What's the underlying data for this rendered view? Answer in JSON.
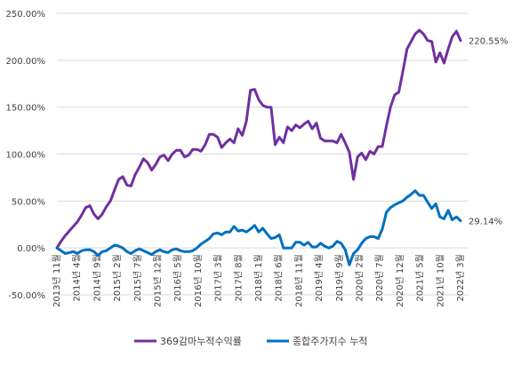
{
  "chart_data": {
    "type": "line",
    "title": "",
    "xlabel": "",
    "ylabel": "",
    "ylim": [
      -50,
      250
    ],
    "yticks": [
      -50,
      0,
      50,
      100,
      150,
      200,
      250
    ],
    "y_tick_labels": [
      "-50.00%",
      "0.00%",
      "50.00%",
      "100.00%",
      "150.00%",
      "200.00%",
      "250.00%"
    ],
    "x_tick_labels": [
      "2013년 11월",
      "2014년 4월",
      "2014년 9월",
      "2015년 2월",
      "2015년 7월",
      "2015년 12월",
      "2016년 5월",
      "2016년 10월",
      "2017년 3월",
      "2017년 8월",
      "2018년 1월",
      "2018년 6월",
      "2018년 11월",
      "2019년 4월",
      "2019년 9월",
      "2020년 2월",
      "2020년 7월",
      "2020년 12월",
      "2021년 5월",
      "2021년 10월",
      "2022년 3월"
    ],
    "grid": "horizontal",
    "legend_position": "bottom",
    "series": [
      {
        "name": "369감마누적수익률",
        "color": "#7030a0",
        "end_label": "220.55%",
        "values": [
          0,
          7,
          13,
          18,
          23,
          28,
          35,
          43,
          45,
          36,
          31,
          36,
          44,
          50,
          62,
          73,
          76,
          67,
          66,
          78,
          86,
          95,
          91,
          83,
          89,
          97,
          99,
          93,
          100,
          104,
          104,
          97,
          99,
          105,
          105,
          103,
          110,
          121,
          121,
          118,
          107,
          112,
          116,
          112,
          127,
          120,
          135,
          168,
          169,
          158,
          152,
          150,
          150,
          110,
          118,
          112,
          129,
          125,
          131,
          128,
          132,
          135,
          127,
          133,
          117,
          114,
          114,
          114,
          112,
          121,
          112,
          102,
          73,
          97,
          101,
          94,
          103,
          100,
          108,
          108,
          130,
          150,
          163,
          166,
          188,
          212,
          220,
          228,
          232,
          228,
          221,
          220,
          198,
          208,
          197,
          212,
          225,
          231,
          221
        ]
      },
      {
        "name": "종합주가지수 누적",
        "color": "#0070c0",
        "end_label": "29.14%",
        "values": [
          0,
          -3,
          -6,
          -5,
          -4,
          -6,
          -3,
          -2,
          -2,
          -4,
          -8,
          -4,
          -3,
          0,
          3,
          2,
          0,
          -4,
          -6,
          -3,
          -1,
          -3,
          -5,
          -7,
          -4,
          -2,
          -4,
          -5,
          -2,
          -1,
          -3,
          -4,
          -4,
          -3,
          0,
          4,
          7,
          10,
          15,
          16,
          14,
          17,
          17,
          23,
          18,
          19,
          17,
          20,
          24,
          17,
          21,
          15,
          10,
          11,
          14,
          0,
          0,
          0,
          6,
          6,
          3,
          6,
          1,
          1,
          5,
          2,
          0,
          2,
          7,
          5,
          -2,
          -18,
          -6,
          -2,
          5,
          10,
          12,
          12,
          10,
          20,
          38,
          43,
          46,
          48,
          50,
          54,
          57,
          61,
          56,
          56,
          49,
          42,
          47,
          33,
          31,
          40,
          30,
          33,
          29
        ]
      }
    ]
  }
}
